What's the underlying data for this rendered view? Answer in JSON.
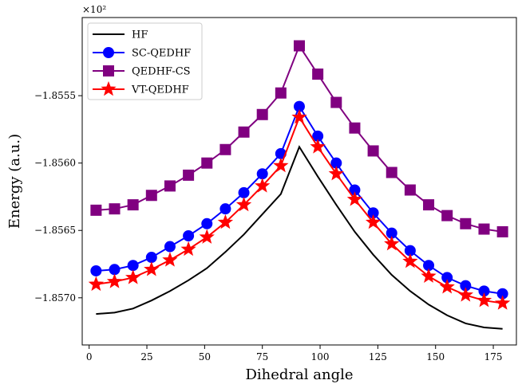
{
  "chart_data": {
    "type": "line",
    "xlabel": "Dihedral angle",
    "ylabel": "Energy (a.u.)",
    "y_offset_label": "×10²",
    "xlim": [
      -3,
      185
    ],
    "ylim": [
      -1.85735,
      -1.85492
    ],
    "xticks": [
      0,
      25,
      50,
      75,
      100,
      125,
      150,
      175
    ],
    "xtick_labels": [
      "0",
      "25",
      "50",
      "75",
      "100",
      "125",
      "150",
      "175"
    ],
    "yticks": [
      -1.857,
      -1.8565,
      -1.856,
      -1.8555
    ],
    "ytick_labels": [
      "−1.8570",
      "−1.8565",
      "−1.8560",
      "−1.8555"
    ],
    "grid": false,
    "legend_position": "top-left",
    "x": [
      3,
      11,
      19,
      27,
      35,
      43,
      51,
      59,
      67,
      75,
      83,
      91,
      99,
      107,
      115,
      123,
      131,
      139,
      147,
      155,
      163,
      171,
      179
    ],
    "series": [
      {
        "name": "HF",
        "color": "#000000",
        "marker": "none",
        "values": [
          -1.85712,
          -1.85711,
          -1.85708,
          -1.85702,
          -1.85695,
          -1.85687,
          -1.85678,
          -1.85666,
          -1.85653,
          -1.85638,
          -1.85623,
          -1.85588,
          -1.8561,
          -1.85631,
          -1.85651,
          -1.85668,
          -1.85683,
          -1.85695,
          -1.85705,
          -1.85713,
          -1.85719,
          -1.85722,
          -1.85723
        ]
      },
      {
        "name": "SC-QEDHF",
        "color": "#0000ff",
        "marker": "circle",
        "values": [
          -1.8568,
          -1.85679,
          -1.85676,
          -1.8567,
          -1.85662,
          -1.85654,
          -1.85645,
          -1.85634,
          -1.85622,
          -1.85608,
          -1.85593,
          -1.85558,
          -1.8558,
          -1.856,
          -1.8562,
          -1.85637,
          -1.85652,
          -1.85665,
          -1.85676,
          -1.85685,
          -1.85691,
          -1.85695,
          -1.85697
        ]
      },
      {
        "name": "QEDHF-CS",
        "color": "#800080",
        "marker": "square",
        "values": [
          -1.85635,
          -1.85634,
          -1.85631,
          -1.85624,
          -1.85617,
          -1.85609,
          -1.856,
          -1.8559,
          -1.85577,
          -1.85564,
          -1.85548,
          -1.85513,
          -1.85534,
          -1.85555,
          -1.85574,
          -1.85591,
          -1.85607,
          -1.8562,
          -1.85631,
          -1.85639,
          -1.85645,
          -1.85649,
          -1.85651
        ]
      },
      {
        "name": "VT-QEDHF",
        "color": "#ff0000",
        "marker": "star",
        "values": [
          -1.8569,
          -1.85688,
          -1.85685,
          -1.85679,
          -1.85672,
          -1.85664,
          -1.85655,
          -1.85644,
          -1.85631,
          -1.85617,
          -1.85602,
          -1.85566,
          -1.85588,
          -1.85608,
          -1.85627,
          -1.85644,
          -1.8566,
          -1.85673,
          -1.85684,
          -1.85692,
          -1.85698,
          -1.85702,
          -1.85704
        ]
      }
    ]
  }
}
